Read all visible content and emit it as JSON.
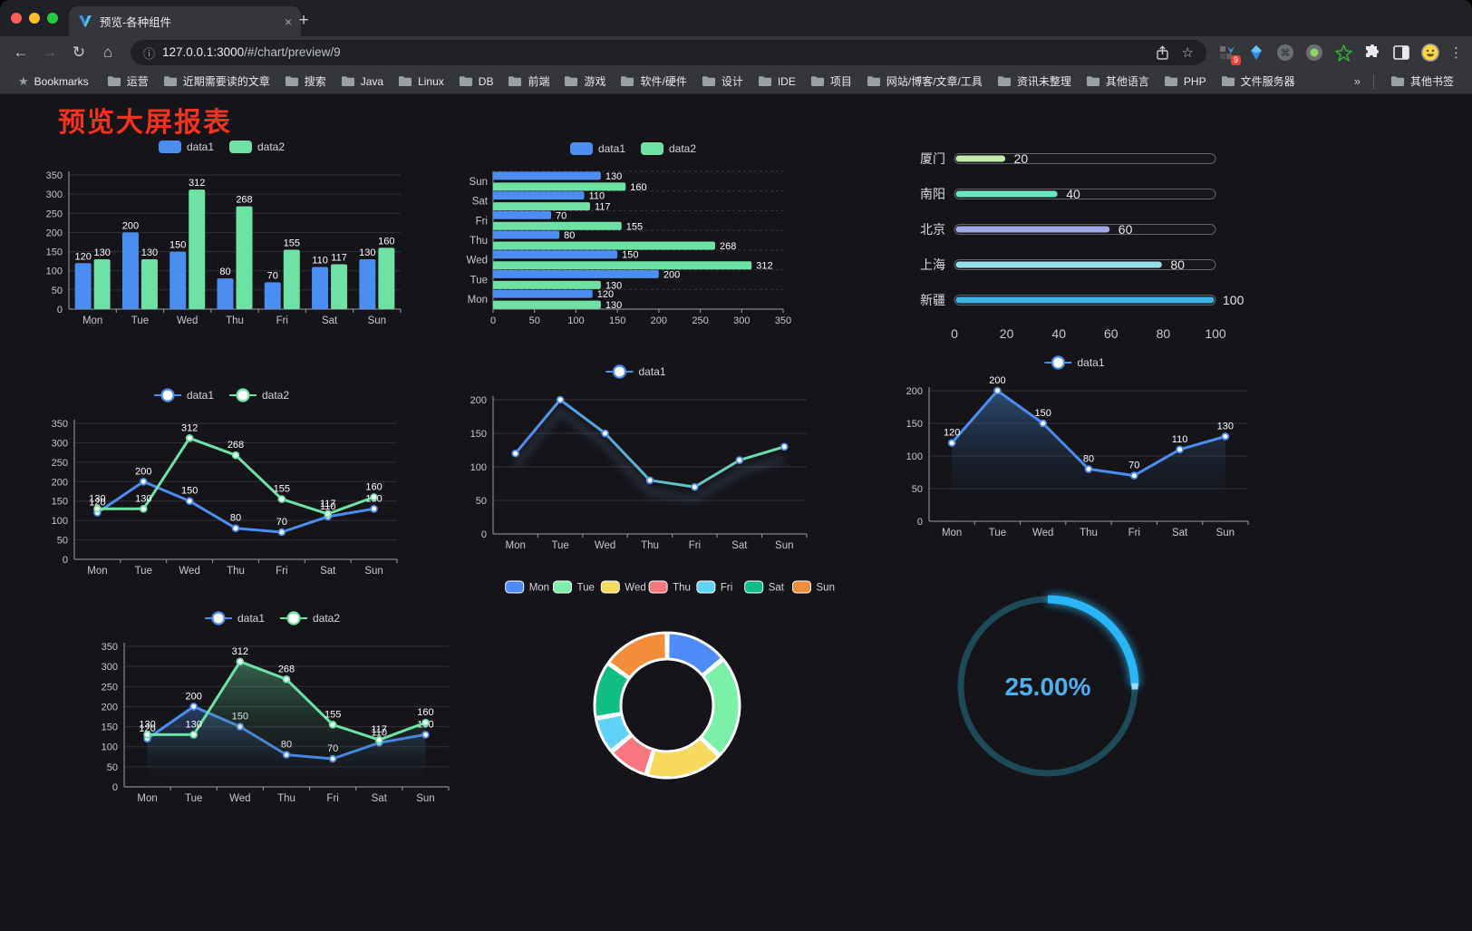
{
  "window": {
    "tab_title": "预览-各种组件",
    "close_tab": "×",
    "new_tab": "+"
  },
  "toolbar": {
    "url_host": "127.0.0.1:3000",
    "url_path": "/#/chart/preview/9",
    "extension_badge": "9"
  },
  "bookmarks_bar": {
    "label": "Bookmarks",
    "folders": [
      "运营",
      "近期需要读的文章",
      "搜索",
      "Java",
      "Linux",
      "DB",
      "前端",
      "游戏",
      "软件/硬件",
      "设计",
      "IDE",
      "项目",
      "网站/博客/文章/工具",
      "资讯未整理",
      "其他语言",
      "PHP",
      "文件服务器"
    ],
    "overflow": "»",
    "other": "其他书签"
  },
  "page": {
    "title": "预览大屏报表",
    "title_color": "#f5321d",
    "background": "#141419"
  },
  "colors": {
    "data1": "#4c8df2",
    "data2": "#6ee2a5",
    "axis_text": "#c6c6cb",
    "grid": "rgba(255,255,255,0.13)",
    "axis_line": "#9aa0a6",
    "value_label": "#ffffff"
  },
  "chart_data": [
    {
      "id": "c1",
      "type": "bar",
      "categories": [
        "Mon",
        "Tue",
        "Wed",
        "Thu",
        "Fri",
        "Sat",
        "Sun"
      ],
      "series": [
        {
          "name": "data1",
          "color": "#4c8df2",
          "values": [
            120,
            200,
            150,
            80,
            70,
            110,
            130
          ]
        },
        {
          "name": "data2",
          "color": "#6ee2a5",
          "values": [
            130,
            130,
            312,
            268,
            155,
            117,
            160
          ]
        }
      ],
      "ylim": [
        0,
        350
      ],
      "yticks": [
        0,
        50,
        100,
        150,
        200,
        250,
        300,
        350
      ],
      "grid": true,
      "legend_position": "top"
    },
    {
      "id": "c2",
      "type": "bar-horizontal",
      "categories": [
        "Mon",
        "Tue",
        "Wed",
        "Thu",
        "Fri",
        "Sat",
        "Sun"
      ],
      "display_order_top_to_bottom": [
        "Sun",
        "Sat",
        "Fri",
        "Thu",
        "Wed",
        "Tue",
        "Mon"
      ],
      "series": [
        {
          "name": "data1",
          "color": "#4c8df2",
          "values": [
            120,
            200,
            150,
            80,
            70,
            110,
            130
          ]
        },
        {
          "name": "data2",
          "color": "#6ee2a5",
          "values": [
            130,
            130,
            312,
            268,
            155,
            117,
            160
          ]
        }
      ],
      "xlim": [
        0,
        350
      ],
      "xticks": [
        0,
        50,
        100,
        150,
        200,
        250,
        300,
        350
      ],
      "legend_position": "top"
    },
    {
      "id": "c3",
      "type": "progress-bars",
      "max": 100,
      "xticks": [
        0,
        20,
        40,
        60,
        80,
        100
      ],
      "items": [
        {
          "label": "厦门",
          "value": 20,
          "color": "#c4ebad"
        },
        {
          "label": "南阳",
          "value": 40,
          "color": "#6be6c1"
        },
        {
          "label": "北京",
          "value": 60,
          "color": "#a0a7e6"
        },
        {
          "label": "上海",
          "value": 80,
          "color": "#96dee8"
        },
        {
          "label": "新疆",
          "value": 100,
          "color": "#3fb1e3"
        }
      ]
    },
    {
      "id": "c4",
      "type": "line",
      "categories": [
        "Mon",
        "Tue",
        "Wed",
        "Thu",
        "Fri",
        "Sat",
        "Sun"
      ],
      "series": [
        {
          "name": "data1",
          "color": "#4c8df2",
          "values": [
            120,
            200,
            150,
            80,
            70,
            110,
            130
          ]
        },
        {
          "name": "data2",
          "color": "#6ee2a5",
          "values": [
            130,
            130,
            312,
            268,
            155,
            117,
            160
          ]
        }
      ],
      "ylim": [
        0,
        350
      ],
      "yticks": [
        0,
        50,
        100,
        150,
        200,
        250,
        300,
        350
      ],
      "labels": true,
      "legend_position": "top"
    },
    {
      "id": "c5",
      "type": "line",
      "categories": [
        "Mon",
        "Tue",
        "Wed",
        "Thu",
        "Fri",
        "Sat",
        "Sun"
      ],
      "series": [
        {
          "name": "data1",
          "color": "#4c8df2",
          "gradient": [
            "#4c8df2",
            "#6ee2a5"
          ],
          "values": [
            120,
            200,
            150,
            80,
            70,
            110,
            130
          ]
        }
      ],
      "ylim": [
        0,
        200
      ],
      "yticks": [
        0,
        50,
        100,
        150,
        200
      ],
      "labels": false,
      "shadow": true,
      "legend_position": "top"
    },
    {
      "id": "c6",
      "type": "area",
      "categories": [
        "Mon",
        "Tue",
        "Wed",
        "Thu",
        "Fri",
        "Sat",
        "Sun"
      ],
      "series": [
        {
          "name": "data1",
          "color": "#4c8df2",
          "area": "rgba(70,130,200,0.5)",
          "values": [
            120,
            200,
            150,
            80,
            70,
            110,
            130
          ]
        }
      ],
      "ylim": [
        0,
        200
      ],
      "yticks": [
        0,
        50,
        100,
        150,
        200
      ],
      "labels": true,
      "legend_position": "top"
    },
    {
      "id": "c7",
      "type": "area",
      "categories": [
        "Mon",
        "Tue",
        "Wed",
        "Thu",
        "Fri",
        "Sat",
        "Sun"
      ],
      "series": [
        {
          "name": "data1",
          "color": "#4c8df2",
          "area": "rgba(76,141,242,0.35)",
          "values": [
            120,
            200,
            150,
            80,
            70,
            110,
            130
          ]
        },
        {
          "name": "data2",
          "color": "#6ee2a5",
          "area": "rgba(110,226,165,0.38)",
          "values": [
            130,
            130,
            312,
            268,
            155,
            117,
            160
          ]
        }
      ],
      "ylim": [
        0,
        350
      ],
      "yticks": [
        0,
        50,
        100,
        150,
        200,
        250,
        300,
        350
      ],
      "labels": true,
      "legend_position": "top"
    },
    {
      "id": "c8",
      "type": "pie",
      "donut": true,
      "legend_position": "top",
      "items": [
        {
          "name": "Mon",
          "value": 120,
          "color": "#4e8bf7"
        },
        {
          "name": "Tue",
          "value": 200,
          "color": "#7bf0a8"
        },
        {
          "name": "Wed",
          "value": 150,
          "color": "#f7d95e"
        },
        {
          "name": "Thu",
          "value": 80,
          "color": "#f8777f"
        },
        {
          "name": "Fri",
          "value": 70,
          "color": "#5fd2f5"
        },
        {
          "name": "Sat",
          "value": 110,
          "color": "#10bd85"
        },
        {
          "name": "Sun",
          "value": 130,
          "color": "#f28d3c"
        }
      ]
    },
    {
      "id": "c9",
      "type": "ring-progress",
      "percent": 25,
      "value_label": "25.00%",
      "color": "#29b5f6",
      "track_color": "#1d4a57",
      "text_color": "#4fb0f0"
    }
  ]
}
